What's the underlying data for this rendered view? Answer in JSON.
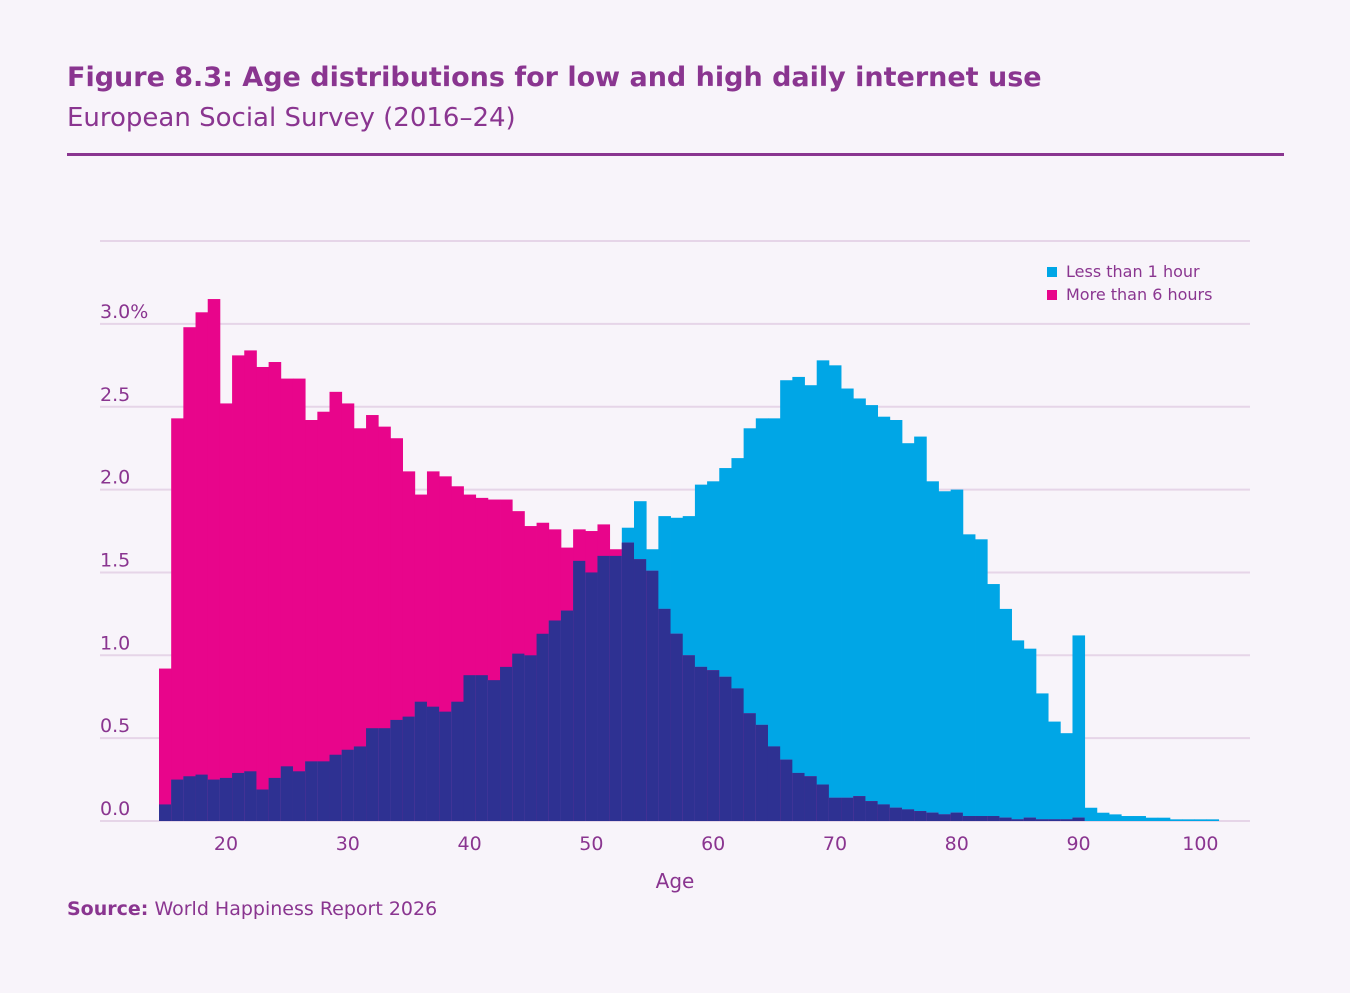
{
  "header": {
    "title": "Figure 8.3: Age distributions for low and high daily internet use",
    "subtitle": "European Social Survey (2016–24)"
  },
  "footer": {
    "source_label": "Source:",
    "source_text": "World Happiness Report 2026"
  },
  "colors": {
    "accent": "#8a3590",
    "less_than_1_hour": "#00a6e6",
    "more_than_6_hours": "#e8058b",
    "overlap": "#2e3192",
    "grid": "#e6d5e8",
    "tick_text": "#8a3590"
  },
  "chart_data": {
    "type": "bar",
    "subtype": "overlapping histogram",
    "xlabel": "Age",
    "ylabel": "",
    "x_ticks": [
      20,
      30,
      40,
      50,
      60,
      70,
      80,
      90,
      100
    ],
    "y_ticks": [
      0.0,
      0.5,
      1.0,
      1.5,
      2.0,
      2.5,
      3.0
    ],
    "y_tick_labels": [
      "0.0",
      "0.5",
      "1.0",
      "1.5",
      "2.0",
      "2.5",
      "3.0%"
    ],
    "xlim": [
      14.5,
      103.5
    ],
    "ylim": [
      0,
      3.5
    ],
    "grid": true,
    "legend_position": "top-right",
    "x": [
      15,
      16,
      17,
      18,
      19,
      20,
      21,
      22,
      23,
      24,
      25,
      26,
      27,
      28,
      29,
      30,
      31,
      32,
      33,
      34,
      35,
      36,
      37,
      38,
      39,
      40,
      41,
      42,
      43,
      44,
      45,
      46,
      47,
      48,
      49,
      50,
      51,
      52,
      53,
      54,
      55,
      56,
      57,
      58,
      59,
      60,
      61,
      62,
      63,
      64,
      65,
      66,
      67,
      68,
      69,
      70,
      71,
      72,
      73,
      74,
      75,
      76,
      77,
      78,
      79,
      80,
      81,
      82,
      83,
      84,
      85,
      86,
      87,
      88,
      89,
      90,
      91,
      92,
      93,
      94,
      95,
      96,
      97,
      98,
      99,
      100,
      101,
      102,
      103
    ],
    "series": [
      {
        "name": "Less than 1 hour",
        "values": [
          0.1,
          0.25,
          0.27,
          0.28,
          0.25,
          0.26,
          0.29,
          0.3,
          0.19,
          0.26,
          0.33,
          0.3,
          0.36,
          0.36,
          0.4,
          0.43,
          0.45,
          0.56,
          0.56,
          0.61,
          0.63,
          0.72,
          0.69,
          0.66,
          0.72,
          0.88,
          0.88,
          0.85,
          0.93,
          1.01,
          1.0,
          1.13,
          1.21,
          1.27,
          1.57,
          1.5,
          1.6,
          1.6,
          1.77,
          1.93,
          1.64,
          1.84,
          1.83,
          1.84,
          2.03,
          2.05,
          2.13,
          2.19,
          2.37,
          2.43,
          2.43,
          2.66,
          2.68,
          2.63,
          2.78,
          2.75,
          2.61,
          2.55,
          2.51,
          2.44,
          2.42,
          2.28,
          2.32,
          2.05,
          1.99,
          2.0,
          1.73,
          1.7,
          1.43,
          1.28,
          1.09,
          1.04,
          0.77,
          0.6,
          0.53,
          1.12,
          0.08,
          0.05,
          0.04,
          0.03,
          0.03,
          0.02,
          0.02,
          0.01,
          0.01,
          0.01,
          0.01,
          0.0,
          0.0
        ]
      },
      {
        "name": "More than 6 hours",
        "values": [
          0.92,
          2.43,
          2.98,
          3.07,
          3.15,
          2.52,
          2.81,
          2.84,
          2.74,
          2.77,
          2.67,
          2.67,
          2.42,
          2.47,
          2.59,
          2.52,
          2.37,
          2.45,
          2.38,
          2.31,
          2.11,
          1.97,
          2.11,
          2.08,
          2.02,
          1.97,
          1.95,
          1.94,
          1.94,
          1.87,
          1.78,
          1.8,
          1.76,
          1.65,
          1.76,
          1.75,
          1.79,
          1.64,
          1.68,
          1.58,
          1.51,
          1.28,
          1.13,
          1.0,
          0.93,
          0.91,
          0.87,
          0.8,
          0.65,
          0.58,
          0.45,
          0.37,
          0.29,
          0.27,
          0.22,
          0.14,
          0.14,
          0.15,
          0.12,
          0.1,
          0.08,
          0.07,
          0.06,
          0.05,
          0.04,
          0.05,
          0.03,
          0.03,
          0.03,
          0.02,
          0.01,
          0.02,
          0.01,
          0.01,
          0.01,
          0.02,
          0.0,
          0.0,
          0.0,
          0.0,
          0.0,
          0.0,
          0.0,
          0.0,
          0.0,
          0.0,
          0.0,
          0.0,
          0.0
        ]
      }
    ]
  }
}
